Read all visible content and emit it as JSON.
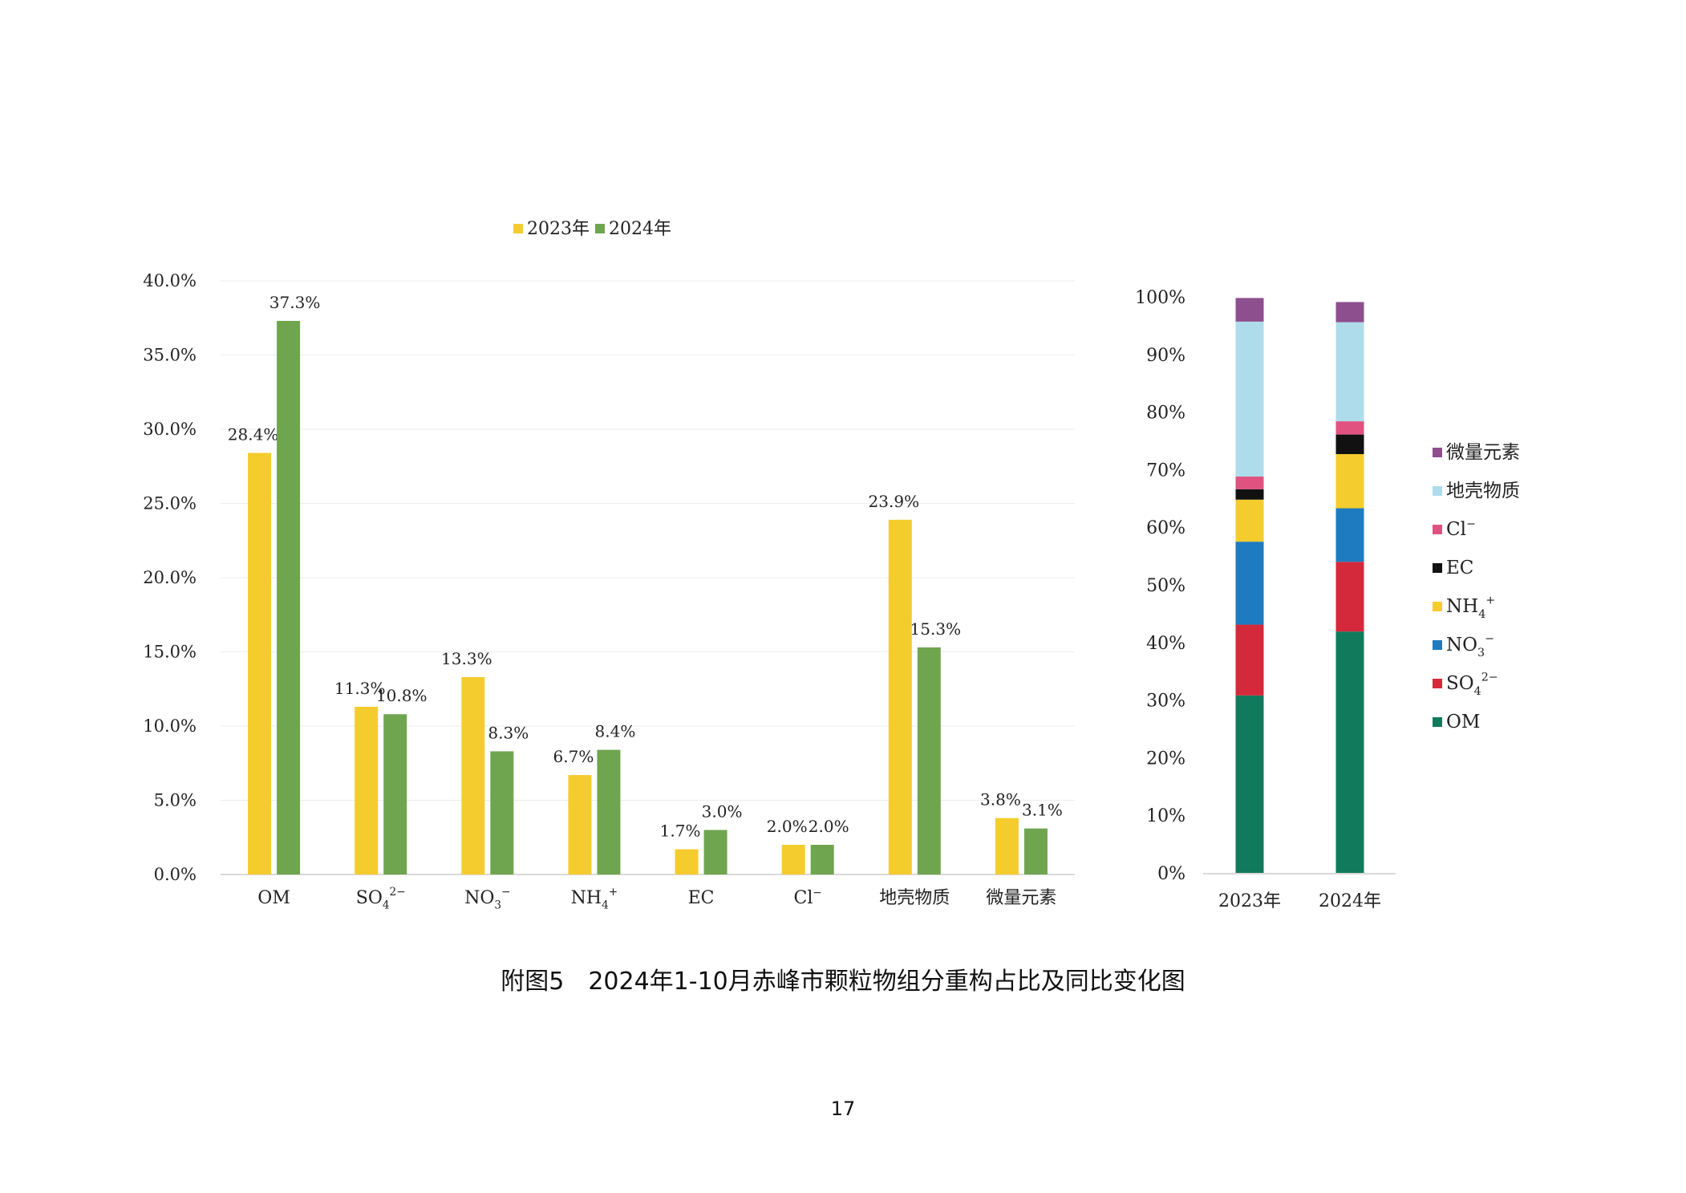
{
  "caption": "附图5　2024年1-10月赤峰市颗粒物组分重构占比及同比变化图",
  "page_number": "17",
  "colors": {
    "y2023": "#f5cc2d",
    "y2024": "#70a550",
    "axis": "#444444",
    "grid": "#ededed"
  },
  "chart_data": [
    {
      "type": "bar",
      "legend": [
        "2023年",
        "2024年"
      ],
      "categories": [
        {
          "base": "OM",
          "sub": "",
          "sup": ""
        },
        {
          "base": "SO",
          "sub": "4",
          "sup": "2−"
        },
        {
          "base": "NO",
          "sub": "3",
          "sup": "−"
        },
        {
          "base": "NH",
          "sub": "4",
          "sup": "+"
        },
        {
          "base": "EC",
          "sub": "",
          "sup": ""
        },
        {
          "base": "Cl",
          "sub": "",
          "sup": "−"
        },
        {
          "base": "地壳物质",
          "sub": "",
          "sup": ""
        },
        {
          "base": "微量元素",
          "sub": "",
          "sup": ""
        }
      ],
      "series": [
        {
          "name": "2023年",
          "values": [
            28.4,
            11.3,
            13.3,
            6.7,
            1.7,
            2.0,
            23.9,
            3.8
          ],
          "labels": [
            "28.4%",
            "11.3%",
            "13.3%",
            "6.7%",
            "1.7%",
            "2.0%",
            "23.9%",
            "3.8%"
          ]
        },
        {
          "name": "2024年",
          "values": [
            37.3,
            10.8,
            8.3,
            8.4,
            3.0,
            2.0,
            15.3,
            3.1
          ],
          "labels": [
            "37.3%",
            "10.8%",
            "8.3%",
            "8.4%",
            "3.0%",
            "2.0%",
            "15.3%",
            "3.1%"
          ]
        }
      ],
      "ylim": [
        0,
        40
      ],
      "yticks": [
        "0.0%",
        "5.0%",
        "10.0%",
        "15.0%",
        "20.0%",
        "25.0%",
        "30.0%",
        "35.0%",
        "40.0%"
      ],
      "grid": true,
      "legend_position": "top"
    },
    {
      "type": "stacked-bar",
      "categories": [
        "2023年",
        "2024年"
      ],
      "components": [
        {
          "base": "OM",
          "sub": "",
          "sup": "",
          "color": "#117a5c"
        },
        {
          "base": "SO",
          "sub": "4",
          "sup": "2−",
          "color": "#d3293a"
        },
        {
          "base": "NO",
          "sub": "3",
          "sup": "−",
          "color": "#1e7bbf"
        },
        {
          "base": "NH",
          "sub": "4",
          "sup": "+",
          "color": "#f5cc2d"
        },
        {
          "base": "EC",
          "sub": "",
          "sup": "",
          "color": "#111111"
        },
        {
          "base": "Cl",
          "sub": "",
          "sup": "−",
          "color": "#e05280"
        },
        {
          "base": "地壳物质",
          "sub": "",
          "sup": "",
          "color": "#aedcea"
        },
        {
          "base": "微量元素",
          "sub": "",
          "sup": "",
          "color": "#8e4f8e"
        }
      ],
      "values": {
        "2023年": [
          30.8,
          12.3,
          14.4,
          7.3,
          1.8,
          2.2,
          26.9,
          4.1
        ],
        "2024年": [
          41.9,
          12.1,
          9.3,
          9.4,
          3.4,
          2.3,
          17.2,
          3.5
        ]
      },
      "ylim": [
        0,
        100
      ],
      "yticks": [
        "0%",
        "10%",
        "20%",
        "30%",
        "40%",
        "50%",
        "60%",
        "70%",
        "80%",
        "90%",
        "100%"
      ],
      "legend_position": "right",
      "legend_order": "reverse"
    }
  ]
}
